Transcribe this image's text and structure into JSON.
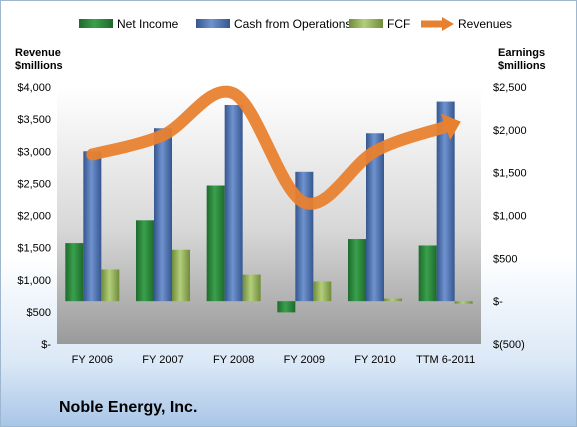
{
  "company": "Noble Energy, Inc.",
  "colors": {
    "net_income": "#2e8b3e",
    "cash_from_operations": "#4d74b7",
    "fcf": "#95b35a",
    "revenues": "#e8812f"
  },
  "chart_data": {
    "type": "bar",
    "categories": [
      "FY 2006",
      "FY 2007",
      "FY 2008",
      "FY 2009",
      "FY 2010",
      "TTM 6-2011"
    ],
    "left_axis": {
      "label_line1": "Revenue",
      "label_line2": "$millions",
      "ylim": [
        0,
        4000
      ],
      "ticks": [
        "$-",
        "$500",
        "$1,000",
        "$1,500",
        "$2,000",
        "$2,500",
        "$3,000",
        "$3,500",
        "$4,000"
      ]
    },
    "right_axis": {
      "label_line1": "Earnings",
      "label_line2": "$millions",
      "ylim": [
        -500,
        2500
      ],
      "ticks": [
        "$(500)",
        "$-",
        "$500",
        "$1,000",
        "$1,500",
        "$2,000",
        "$2,500"
      ]
    },
    "legend_position": "top",
    "grid": false,
    "series": [
      {
        "name": "Net Income",
        "axis": "right",
        "kind": "bar",
        "values": [
          678,
          944,
          1350,
          -131,
          725,
          650
        ]
      },
      {
        "name": "Cash from Operations",
        "axis": "right",
        "kind": "bar",
        "values": [
          1750,
          2019,
          2290,
          1510,
          1960,
          2330
        ]
      },
      {
        "name": "FCF",
        "axis": "right",
        "kind": "bar",
        "values": [
          370,
          600,
          310,
          230,
          30,
          -30
        ]
      },
      {
        "name": "Revenues",
        "axis": "left",
        "kind": "line",
        "values": [
          2950,
          3250,
          3900,
          2200,
          3000,
          3380
        ]
      }
    ]
  }
}
